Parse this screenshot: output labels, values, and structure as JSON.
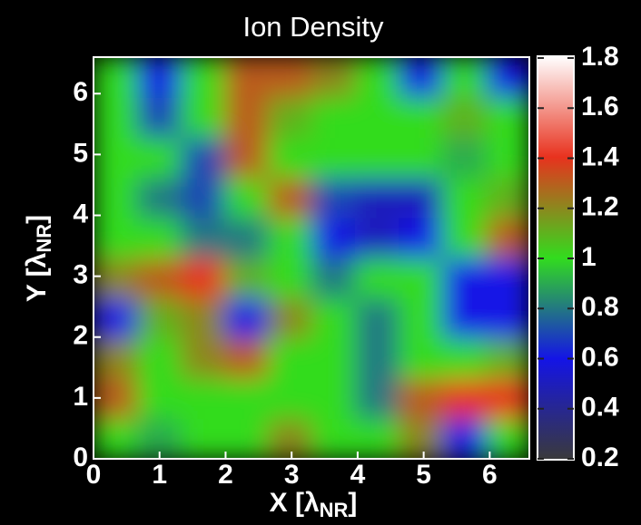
{
  "chart_data": {
    "type": "heatmap",
    "title": "Ion Density",
    "xlabel": [
      "X [λ",
      "NR",
      "]"
    ],
    "ylabel": [
      "Y [λ",
      "NR",
      "]"
    ],
    "xlim": [
      0,
      6.6
    ],
    "ylim": [
      0,
      6.6
    ],
    "xticks": [
      0,
      1,
      2,
      3,
      4,
      5,
      6
    ],
    "yticks": [
      0,
      1,
      2,
      3,
      4,
      5,
      6
    ],
    "xbins": [
      0,
      0.66,
      1.32,
      1.98,
      2.64,
      3.3,
      3.96,
      4.62,
      5.28,
      5.94,
      6.6
    ],
    "ybins": [
      0,
      0.66,
      1.32,
      1.98,
      2.64,
      3.3,
      3.96,
      4.62,
      5.28,
      5.94,
      6.6
    ],
    "z": [
      [
        1.0,
        0.9,
        1.0,
        1.0,
        1.2,
        1.0,
        1.0,
        1.2,
        0.6,
        1.0
      ],
      [
        1.3,
        1.0,
        1.0,
        1.0,
        1.0,
        1.0,
        0.8,
        1.3,
        1.4,
        1.4
      ],
      [
        1.2,
        1.0,
        1.2,
        1.3,
        1.0,
        1.0,
        0.8,
        1.0,
        1.0,
        1.1
      ],
      [
        0.6,
        1.1,
        1.2,
        0.6,
        1.2,
        1.0,
        0.8,
        1.0,
        0.6,
        0.6
      ],
      [
        1.2,
        1.3,
        1.4,
        1.1,
        1.0,
        0.8,
        1.0,
        1.0,
        0.6,
        0.6
      ],
      [
        1.0,
        1.0,
        0.8,
        0.8,
        1.0,
        0.6,
        0.5,
        0.6,
        1.0,
        1.3
      ],
      [
        1.0,
        0.8,
        0.7,
        1.0,
        1.3,
        0.7,
        0.5,
        0.5,
        1.0,
        1.1
      ],
      [
        1.0,
        1.0,
        0.7,
        1.3,
        1.0,
        1.0,
        1.0,
        1.0,
        0.9,
        1.0
      ],
      [
        1.0,
        0.7,
        1.0,
        1.3,
        1.1,
        1.0,
        1.0,
        1.0,
        1.1,
        1.0
      ],
      [
        1.0,
        0.6,
        1.0,
        1.3,
        1.3,
        1.2,
        1.0,
        0.6,
        1.0,
        0.6
      ]
    ],
    "clim": [
      0.2,
      1.8
    ],
    "cticks": [
      0.2,
      0.4,
      0.6,
      0.8,
      1,
      1.2,
      1.4,
      1.6,
      1.8
    ],
    "colormap": [
      {
        "value": 0.2,
        "color": "#3a3a3a"
      },
      {
        "value": 0.6,
        "color": "#1414e6"
      },
      {
        "value": 1.0,
        "color": "#32dc1e"
      },
      {
        "value": 1.4,
        "color": "#e8321e"
      },
      {
        "value": 1.8,
        "color": "#ffffff"
      }
    ]
  }
}
